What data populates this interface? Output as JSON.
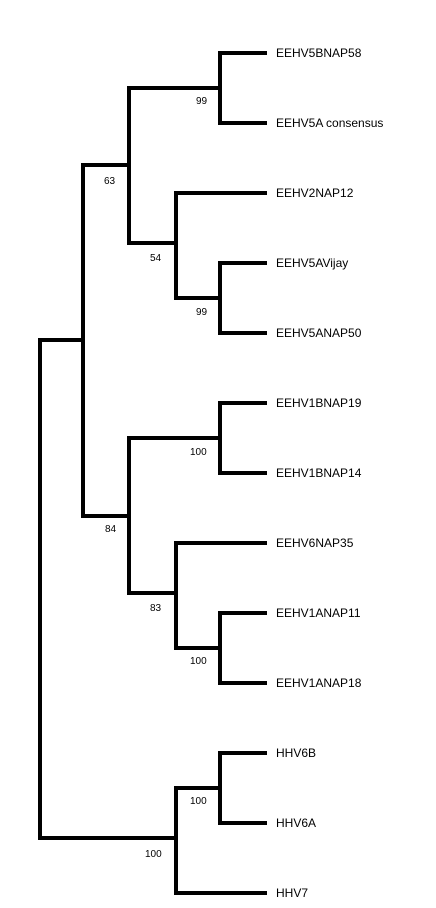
{
  "tree": {
    "taxa": [
      {
        "name": "EEHV5BNAP58"
      },
      {
        "name": "EEHV5A consensus"
      },
      {
        "name": "EEHV2NAP12"
      },
      {
        "name": "EEHV5AVijay"
      },
      {
        "name": "EEHV5ANAP50"
      },
      {
        "name": "EEHV1BNAP19"
      },
      {
        "name": "EEHV1BNAP14"
      },
      {
        "name": "EEHV6NAP35"
      },
      {
        "name": "EEHV1ANAP11"
      },
      {
        "name": "EEHV1ANAP18"
      },
      {
        "name": "HHV6B"
      },
      {
        "name": "HHV6A"
      },
      {
        "name": "HHV7"
      }
    ],
    "bootstrap_values": [
      "99",
      "63",
      "54",
      "99",
      "100",
      "84",
      "83",
      "100",
      "100",
      "100"
    ],
    "line_color": "#000000"
  }
}
